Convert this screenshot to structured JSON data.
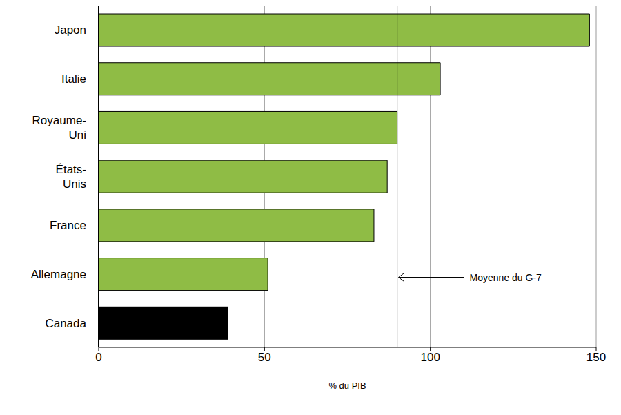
{
  "chart_data": {
    "type": "bar",
    "orientation": "horizontal",
    "categories": [
      "Japon",
      "Italie",
      "Royaume-Uni",
      "États-Unis",
      "France",
      "Allemagne",
      "Canada"
    ],
    "values": [
      148,
      103,
      90,
      87,
      83,
      51,
      39
    ],
    "colors": [
      "#8fbc45",
      "#8fbc45",
      "#8fbc45",
      "#8fbc45",
      "#8fbc45",
      "#8fbc45",
      "#000000"
    ],
    "xlabel": "% du PIB",
    "xlim": [
      0,
      150
    ],
    "xticks": [
      0,
      50,
      100,
      150
    ],
    "grid": true,
    "reference_lines": [
      {
        "value": 90,
        "label": "Moyenne du G-7"
      }
    ]
  }
}
